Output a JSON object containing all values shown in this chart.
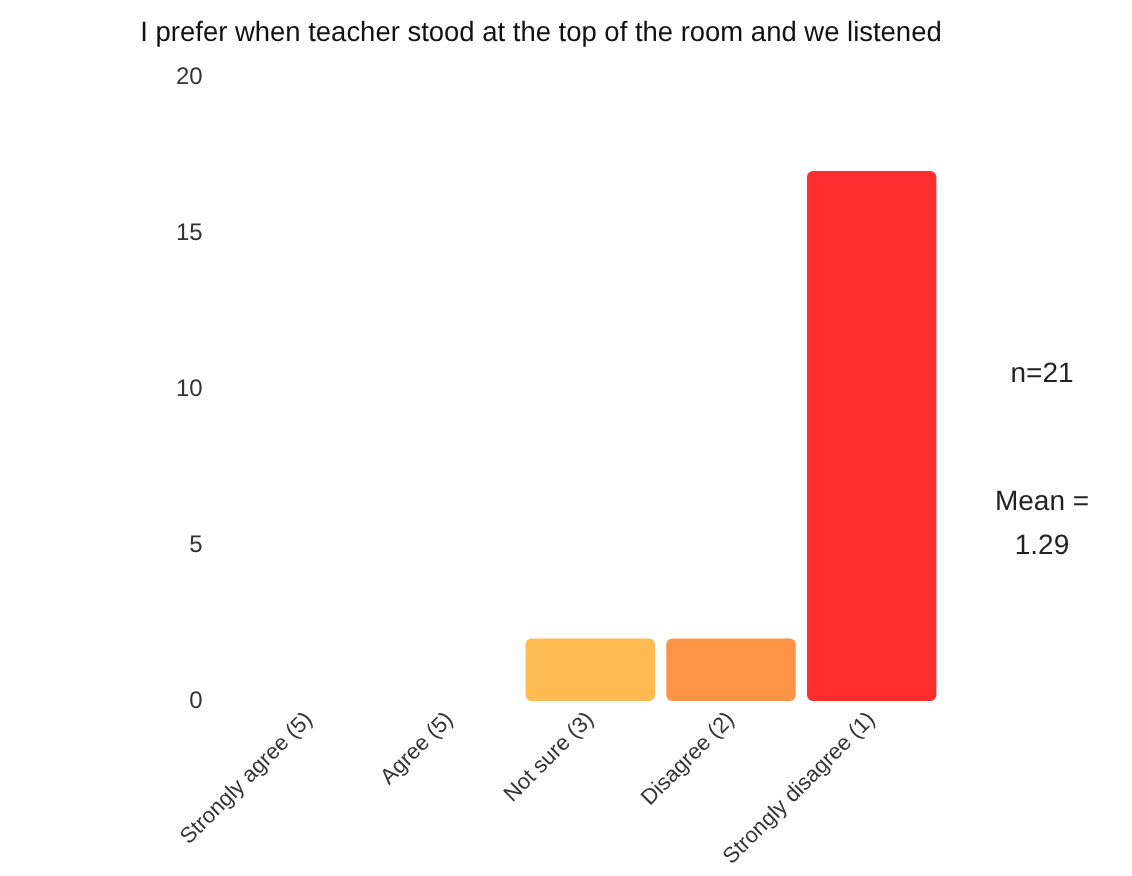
{
  "chart_data": {
    "type": "bar",
    "title": "I prefer when teacher stood at the top of the room and we listened",
    "categories": [
      "Strongly agree (5)",
      "Agree (5)",
      "Not sure (3)",
      "Disagree (2)",
      "Strongly disagree (1)"
    ],
    "values": [
      0,
      0,
      2,
      2,
      17
    ],
    "colors": [
      "#ffd35c",
      "#ffc65a",
      "#ffba52",
      "#ff9346",
      "#ff2e2e"
    ],
    "ylim": [
      0,
      20
    ],
    "yticks": [
      0,
      5,
      10,
      15,
      20
    ],
    "grid": false,
    "legend": false,
    "annotations": [
      "n=21",
      "Mean =\n1.29"
    ]
  }
}
